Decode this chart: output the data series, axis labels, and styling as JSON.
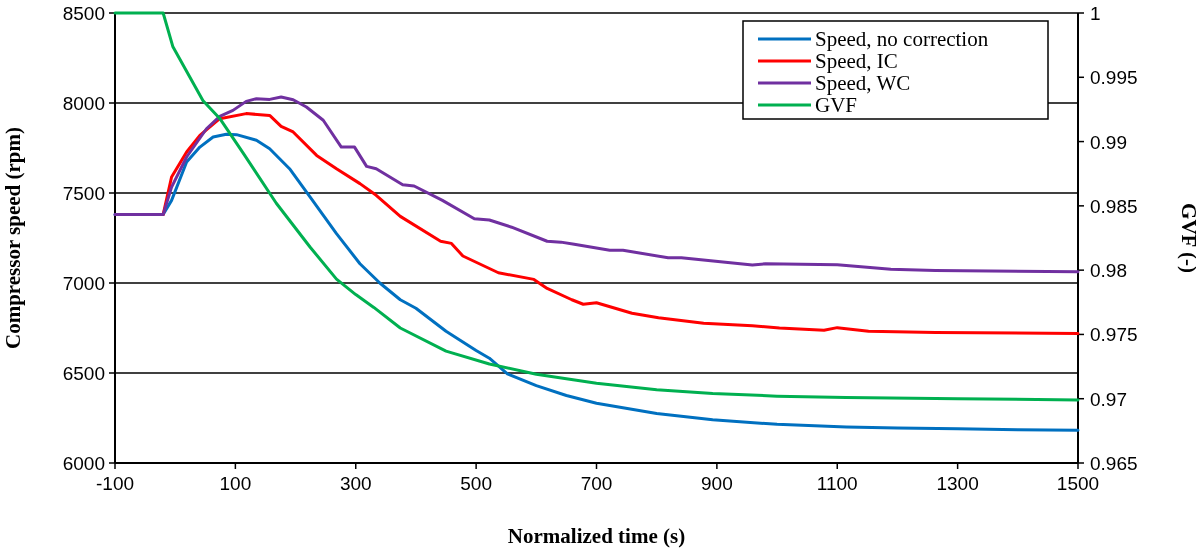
{
  "chart_data": {
    "type": "line",
    "xlabel": "Normalized time (s)",
    "ylabel": "Compressor speed (rpm)",
    "y2label": "GVF (-)",
    "xlim": [
      -100,
      1500
    ],
    "xticks": [
      -100,
      100,
      300,
      500,
      700,
      900,
      1100,
      1300,
      1500
    ],
    "ylim": [
      6000,
      8500
    ],
    "yticks": [
      6000,
      6500,
      7000,
      7500,
      8000,
      8500
    ],
    "y2lim": [
      0.965,
      1
    ],
    "y2ticks": [
      0.965,
      0.97,
      0.975,
      0.98,
      0.985,
      0.99,
      0.995,
      1
    ],
    "grid": "y",
    "legend": "top right",
    "marker": "none",
    "line_style": "solid",
    "series": [
      {
        "name": "Speed, no correction",
        "color": "#0070c0",
        "x": [
          -100,
          -20,
          -6,
          19,
          41,
          63,
          85,
          102,
          135,
          157,
          190,
          224,
          268,
          307,
          340,
          374,
          400,
          450,
          500,
          522,
          552,
          600,
          650,
          700,
          800,
          893,
          1000,
          1115,
          1200,
          1300,
          1400,
          1500
        ],
        "values": [
          7380,
          7380,
          7459,
          7672,
          7755,
          7811,
          7826,
          7824,
          7793,
          7746,
          7635,
          7478,
          7274,
          7107,
          7000,
          6907,
          6860,
          6732,
          6625,
          6582,
          6495,
          6430,
          6375,
          6332,
          6275,
          6240,
          6215,
          6200,
          6195,
          6190,
          6185,
          6182
        ]
      },
      {
        "name": "Speed, IC",
        "color": "#ff0000",
        "x": [
          -20,
          -6,
          19,
          41,
          74,
          118,
          157,
          176,
          196,
          235,
          268,
          307,
          334,
          374,
          441,
          459,
          478,
          537,
          596,
          618,
          659,
          678,
          700,
          759,
          803,
          878,
          959,
          1004,
          1078,
          1100,
          1152,
          1263,
          1500
        ],
        "values": [
          7380,
          7589,
          7728,
          7820,
          7913,
          7941,
          7931,
          7870,
          7839,
          7709,
          7635,
          7552,
          7487,
          7370,
          7232,
          7220,
          7150,
          7057,
          7020,
          6970,
          6907,
          6882,
          6890,
          6832,
          6807,
          6777,
          6762,
          6750,
          6737,
          6752,
          6732,
          6725,
          6720
        ]
      },
      {
        "name": "Speed, WC",
        "color": "#7030a0",
        "x": [
          -100,
          -20,
          -6,
          19,
          52,
          74,
          96,
          118,
          135,
          157,
          176,
          196,
          218,
          246,
          276,
          298,
          318,
          334,
          378,
          397,
          444,
          497,
          522,
          559,
          618,
          641,
          663,
          722,
          744,
          819,
          841,
          959,
          981,
          1100,
          1189,
          1263,
          1500
        ],
        "values": [
          7380,
          7380,
          7533,
          7700,
          7857,
          7926,
          7959,
          8009,
          8024,
          8020,
          8033,
          8018,
          7978,
          7904,
          7755,
          7755,
          7648,
          7635,
          7546,
          7539,
          7459,
          7357,
          7350,
          7310,
          7232,
          7227,
          7215,
          7182,
          7182,
          7140,
          7140,
          7100,
          7107,
          7102,
          7077,
          7070,
          7062
        ]
      },
      {
        "name": "GVF",
        "color": "#00b050",
        "axis": "y2",
        "x": [
          -100,
          -20,
          -4,
          46,
          74,
          113,
          168,
          224,
          268,
          300,
          330,
          374,
          450,
          522,
          600,
          700,
          800,
          893,
          1000,
          1115,
          1300,
          1500
        ],
        "values": [
          1,
          1,
          0.9974,
          0.9932,
          0.9918,
          0.9891,
          0.9852,
          0.9818,
          0.9793,
          0.9781,
          0.9771,
          0.9755,
          0.9737,
          0.9727,
          0.9719,
          0.9712,
          0.9707,
          0.9704,
          0.9702,
          0.9701,
          0.97,
          0.9699
        ]
      }
    ]
  }
}
